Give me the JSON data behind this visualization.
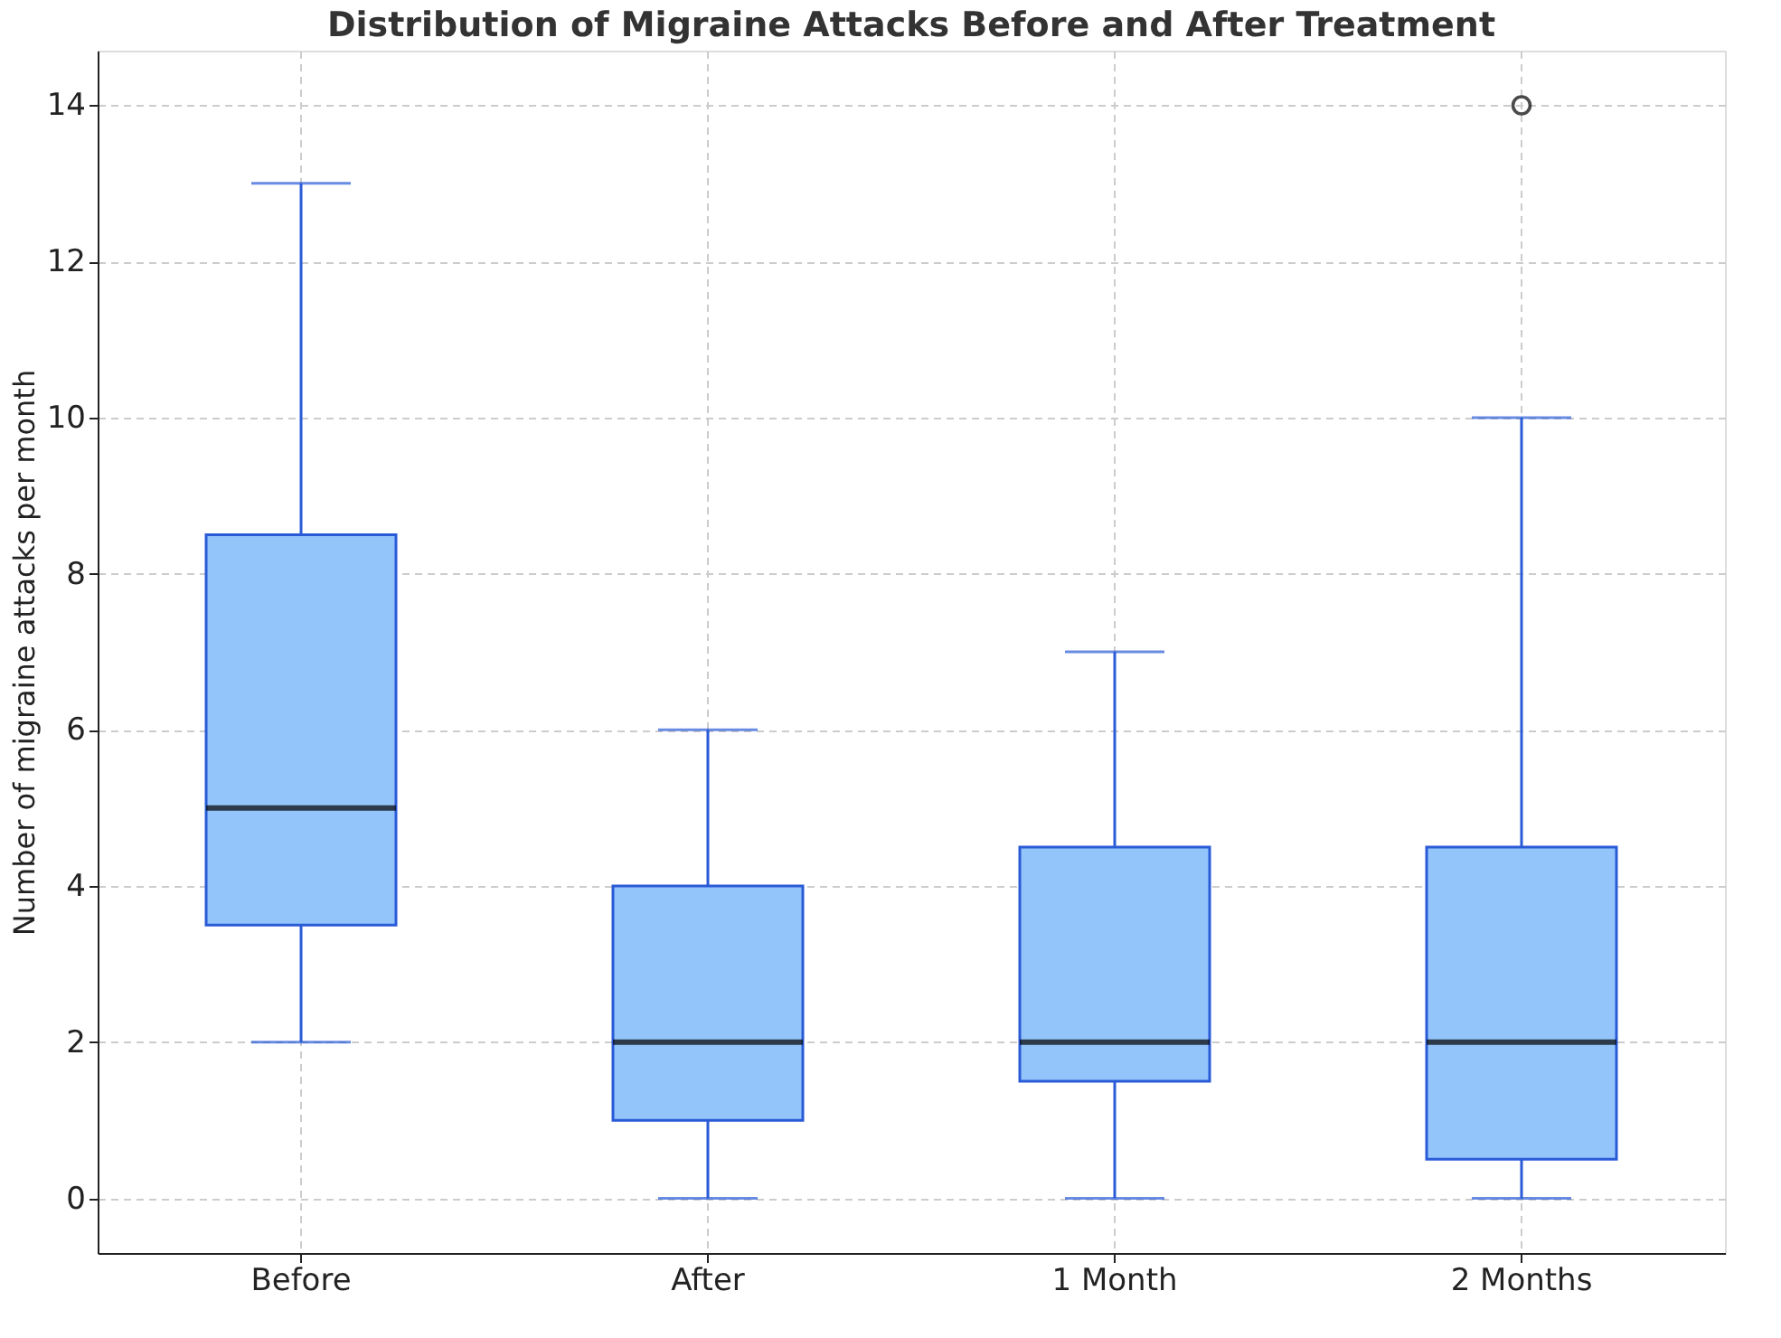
{
  "chart_data": {
    "type": "box",
    "title": "Distribution of Migraine Attacks Before and After Treatment",
    "ylabel": "Number of migraine attacks per month",
    "categories": [
      "Before",
      "After",
      "1 Month",
      "2 Months"
    ],
    "boxes": [
      {
        "low": 2,
        "q1": 3.5,
        "median": 5,
        "q3": 8.5,
        "high": 13
      },
      {
        "low": 0,
        "q1": 1,
        "median": 2,
        "q3": 4,
        "high": 6
      },
      {
        "low": 0,
        "q1": 1.5,
        "median": 2,
        "q3": 4.5,
        "high": 7
      },
      {
        "low": 0,
        "q1": 0.5,
        "median": 2,
        "q3": 4.5,
        "high": 10,
        "outliers": [
          14
        ]
      }
    ],
    "color": "#93c5fb",
    "ylim": [
      -0.7,
      14.7
    ],
    "yticks": [
      0,
      2,
      4,
      6,
      8,
      10,
      12,
      14
    ],
    "grid": true
  }
}
